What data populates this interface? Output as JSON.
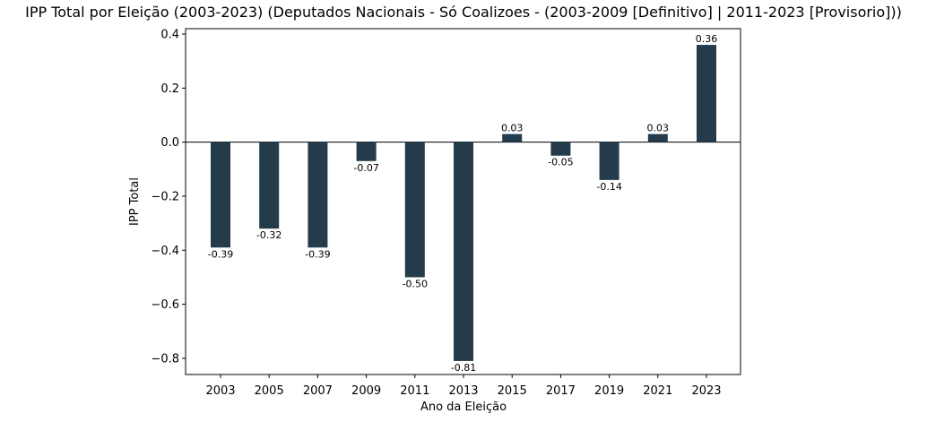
{
  "chart_data": {
    "type": "bar",
    "title": "IPP Total por Eleição (2003-2023) (Deputados Nacionais - Só Coalizoes - (2003-2009 [Definitivo] | 2011-2023 [Provisorio]))",
    "xlabel": "Ano da Eleição",
    "ylabel": "IPP Total",
    "categories": [
      "2003",
      "2005",
      "2007",
      "2009",
      "2011",
      "2013",
      "2015",
      "2017",
      "2019",
      "2021",
      "2023"
    ],
    "values": [
      -0.39,
      -0.32,
      -0.39,
      -0.07,
      -0.5,
      -0.81,
      0.03,
      -0.05,
      -0.14,
      0.03,
      0.36
    ],
    "data_labels": [
      "-0.39",
      "-0.32",
      "-0.39",
      "-0.07",
      "-0.50",
      "-0.81",
      "0.03",
      "-0.05",
      "-0.14",
      "0.03",
      "0.36"
    ],
    "yticks": [
      -0.8,
      -0.6,
      -0.4,
      -0.2,
      0.0,
      0.2,
      0.4
    ],
    "ytick_labels": [
      "−0.8",
      "−0.6",
      "−0.4",
      "−0.2",
      "0.0",
      "0.2",
      "0.4"
    ],
    "ylim": [
      -0.86,
      0.42
    ],
    "bar_color": "#233b4a",
    "zero_line": true,
    "grid": false,
    "legend": "none"
  }
}
